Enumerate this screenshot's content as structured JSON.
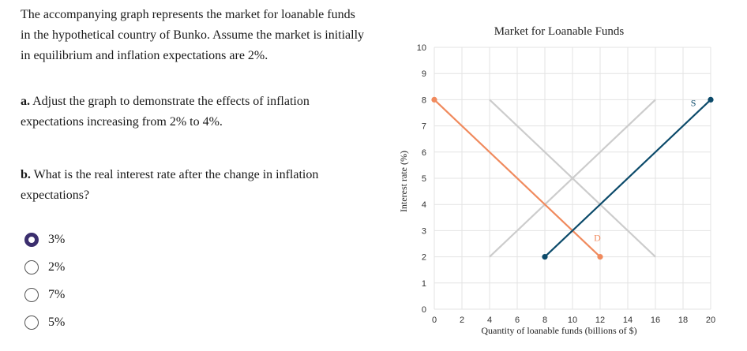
{
  "question": {
    "intro": "The accompanying graph represents the market for loanable funds in the hypothetical country of Bunko. Assume the market is initially in equilibrium and inflation expectations are 2%.",
    "part_a_label": "a.",
    "part_a_text": "Adjust the graph to demonstrate the effects of inflation expectations increasing from 2% to 4%.",
    "part_b_label": "b.",
    "part_b_text": "What is the real interest rate after the change in inflation expectations?"
  },
  "options": [
    {
      "label": "3%",
      "selected": true
    },
    {
      "label": "2%",
      "selected": false
    },
    {
      "label": "7%",
      "selected": false
    },
    {
      "label": "5%",
      "selected": false
    }
  ],
  "chart_data": {
    "type": "line",
    "title": "Market for Loanable Funds",
    "xlabel": "Quantity of loanable funds (billions of $)",
    "ylabel": "Interest rate (%)",
    "xlim": [
      0,
      20
    ],
    "ylim": [
      0,
      10
    ],
    "xticks": [
      0,
      2,
      4,
      6,
      8,
      10,
      12,
      14,
      16,
      18,
      20
    ],
    "yticks": [
      0,
      1,
      2,
      3,
      4,
      5,
      6,
      7,
      8,
      9,
      10
    ],
    "grid": true,
    "series": [
      {
        "name": "",
        "role": "original-supply",
        "color": "#cccccc",
        "x": [
          4,
          16
        ],
        "y": [
          2,
          8
        ]
      },
      {
        "name": "",
        "role": "original-demand",
        "color": "#cccccc",
        "x": [
          4,
          16
        ],
        "y": [
          8,
          2
        ]
      },
      {
        "name": "D",
        "role": "demand",
        "color": "#f08a5d",
        "x": [
          0,
          12
        ],
        "y": [
          8,
          2
        ]
      },
      {
        "name": "S",
        "role": "supply",
        "color": "#0b4a6a",
        "x": [
          8,
          20
        ],
        "y": [
          2,
          8
        ]
      }
    ]
  }
}
